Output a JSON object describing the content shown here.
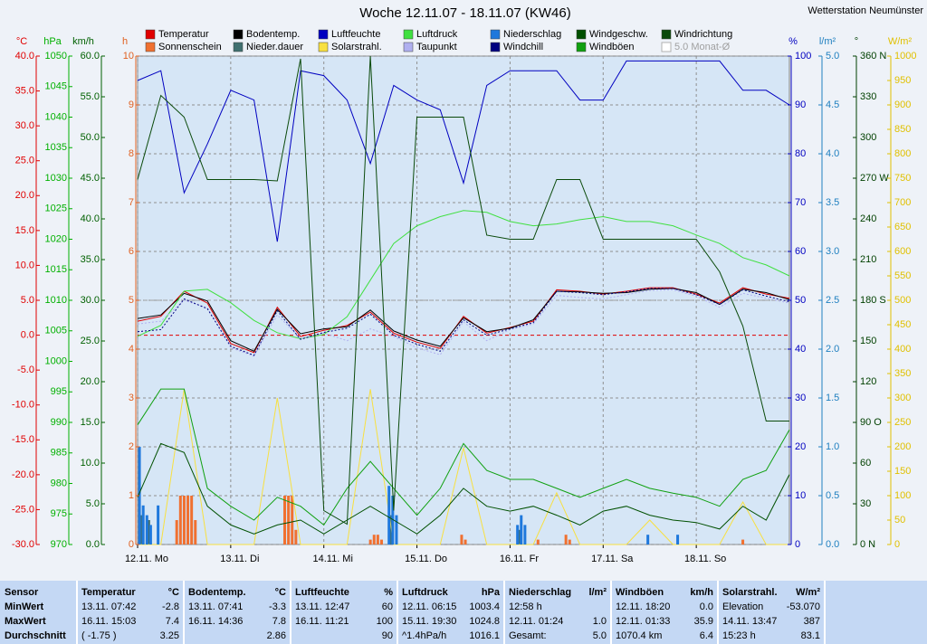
{
  "chart_data": {
    "type": "weather",
    "title": "Woche 12.11.07 - 18.11.07 (KW46)",
    "station": "Wetterstation Neumünster",
    "xlim": [
      0,
      7
    ],
    "xticks": [
      {
        "value": 0,
        "label": "12.11. Mo"
      },
      {
        "value": 1,
        "label": "13.11. Di"
      },
      {
        "value": 2,
        "label": "14.11. Mi"
      },
      {
        "value": 3,
        "label": "15.11. Do"
      },
      {
        "value": 4,
        "label": "16.11. Fr"
      },
      {
        "value": 5,
        "label": "17.11. Sa"
      },
      {
        "value": 6,
        "label": "18.11. So"
      }
    ],
    "axes": [
      {
        "unit": "°C",
        "color": "#e00000",
        "lim": [
          -30,
          40
        ],
        "ticks": [
          {
            "value": 40,
            "label": "40.0"
          },
          {
            "value": 35,
            "label": "35.0"
          },
          {
            "value": 30,
            "label": "30.0"
          },
          {
            "value": 25,
            "label": "25.0"
          },
          {
            "value": 20,
            "label": "20.0"
          },
          {
            "value": 15,
            "label": "15.0"
          },
          {
            "value": 10,
            "label": "10.0"
          },
          {
            "value": 5,
            "label": "5.0"
          },
          {
            "value": 0,
            "label": "0.0"
          },
          {
            "value": -5,
            "label": "-5.0"
          },
          {
            "value": -10,
            "label": "-10.0"
          },
          {
            "value": -15,
            "label": "-15.0"
          },
          {
            "value": -20,
            "label": "-20.0"
          },
          {
            "value": -25,
            "label": "-25.0"
          },
          {
            "value": -30,
            "label": "-30.0"
          }
        ]
      },
      {
        "unit": "hPa",
        "color": "#00b000",
        "lim": [
          970,
          1050
        ],
        "ticks": [
          1050,
          1045,
          1040,
          1035,
          1030,
          1025,
          1020,
          1015,
          1010,
          1005,
          1000,
          995,
          990,
          985,
          980,
          975,
          970
        ]
      },
      {
        "unit": "km/h",
        "color": "#006000",
        "lim": [
          0,
          60
        ],
        "ticks": [
          {
            "value": 60,
            "label": "60.0"
          },
          {
            "value": 55,
            "label": "55.0"
          },
          {
            "value": 50,
            "label": "50.0"
          },
          {
            "value": 45,
            "label": "45.0"
          },
          {
            "value": 40,
            "label": "40.0"
          },
          {
            "value": 35,
            "label": "35.0"
          },
          {
            "value": 30,
            "label": "30.0"
          },
          {
            "value": 25,
            "label": "25.0"
          },
          {
            "value": 20,
            "label": "20.0"
          },
          {
            "value": 15,
            "label": "15.0"
          },
          {
            "value": 10,
            "label": "10.0"
          },
          {
            "value": 5,
            "label": "5.0"
          },
          {
            "value": 0,
            "label": "0.0"
          }
        ]
      },
      {
        "unit": "h",
        "color": "#e06020",
        "lim": [
          0,
          10
        ],
        "grid": true,
        "ticks": [
          10,
          9,
          8,
          7,
          6,
          5,
          4,
          3,
          2,
          1,
          0
        ]
      },
      {
        "unit": "%",
        "color": "#0000c0",
        "lim": [
          0,
          100
        ],
        "ticks": [
          100,
          90,
          80,
          70,
          60,
          50,
          40,
          30,
          20,
          10,
          0
        ]
      },
      {
        "unit": "l/m²",
        "color": "#2080c0",
        "lim": [
          0,
          5
        ],
        "ticks": [
          {
            "value": 5,
            "label": "5.0"
          },
          4.5,
          {
            "value": 4,
            "label": "4.0"
          },
          3.5,
          {
            "value": 3,
            "label": "3.0"
          },
          2.5,
          {
            "value": 2,
            "label": "2.0"
          },
          1.5,
          {
            "value": 1,
            "label": "1.0"
          },
          0.5,
          {
            "value": 0,
            "label": "0.0"
          }
        ]
      },
      {
        "unit": "°",
        "color": "#004000",
        "lim": [
          0,
          360
        ],
        "ticks": [
          {
            "value": 360,
            "label": "360 N"
          },
          330,
          300,
          {
            "value": 270,
            "label": "270 W"
          },
          240,
          210,
          {
            "value": 180,
            "label": "180 S"
          },
          150,
          120,
          {
            "value": 90,
            "label": "90 O"
          },
          60,
          30,
          {
            "value": 0,
            "label": "0 N"
          }
        ]
      },
      {
        "unit": "W/m²",
        "color": "#e0c000",
        "lim": [
          0,
          1000
        ],
        "ticks": [
          1000,
          950,
          900,
          850,
          800,
          750,
          700,
          650,
          600,
          550,
          500,
          450,
          400,
          350,
          300,
          250,
          200,
          150,
          100,
          50,
          0
        ]
      }
    ],
    "x": [
      0,
      0.25,
      0.5,
      0.75,
      1,
      1.25,
      1.5,
      1.75,
      2,
      2.25,
      2.5,
      2.75,
      3,
      3.25,
      3.5,
      3.75,
      4,
      4.25,
      4.5,
      4.75,
      5,
      5.25,
      5.5,
      5.75,
      6,
      6.25,
      6.5,
      6.75,
      7
    ],
    "series": [
      {
        "name": "Temperatur",
        "color": "#e00000",
        "axis": 0,
        "kind": "line",
        "values": [
          2.0,
          2.7,
          6.3,
          4.6,
          -1.2,
          -2.5,
          4.0,
          -0.2,
          0.7,
          1.4,
          3.3,
          0.3,
          -1.0,
          -1.9,
          2.7,
          0.3,
          1.1,
          2.0,
          6.5,
          6.3,
          5.9,
          6.3,
          6.8,
          6.8,
          5.9,
          4.6,
          6.8,
          5.9,
          5.3
        ]
      },
      {
        "name": "Sonnenschein",
        "color": "#f07030",
        "axis": 3,
        "kind": "bar",
        "x": [
          0.42,
          0.46,
          0.5,
          0.54,
          0.58,
          0.62,
          1.58,
          1.62,
          1.66,
          1.7,
          2.5,
          2.54,
          2.58,
          2.62,
          3.48,
          3.52,
          4.3,
          4.6,
          4.64,
          6.5
        ],
        "values": [
          0.5,
          1,
          1,
          1,
          1,
          0.5,
          1,
          1,
          1,
          0.3,
          0.1,
          0.2,
          0.2,
          0.1,
          0.2,
          0.1,
          0.1,
          0.2,
          0.1,
          0.1
        ]
      },
      {
        "name": "Bodentemp.",
        "color": "#000000",
        "axis": 0,
        "kind": "line",
        "values": [
          2.4,
          2.9,
          6.0,
          4.9,
          -0.8,
          -2.3,
          3.7,
          0.2,
          0.9,
          1.2,
          3.6,
          0.6,
          -0.7,
          -1.6,
          2.5,
          0.5,
          1.0,
          2.2,
          6.3,
          6.2,
          6.0,
          6.1,
          6.6,
          6.7,
          6.1,
          4.4,
          6.6,
          6.1,
          5.1
        ]
      },
      {
        "name": "Nieder.dauer",
        "color": "#407070",
        "axis": 3,
        "kind": "bar",
        "x": [
          0.04,
          0.12,
          2.72,
          4.1
        ],
        "values": [
          0.6,
          0.5,
          0.6,
          0.3
        ]
      },
      {
        "name": "Luftfeuchte",
        "color": "#0000c0",
        "axis": 4,
        "kind": "line",
        "values": [
          95,
          97,
          72,
          82,
          93,
          91,
          62,
          97,
          96,
          91,
          78,
          94,
          91,
          89,
          74,
          94,
          97,
          97,
          97,
          91,
          91,
          99,
          99,
          99,
          99,
          99,
          93,
          93,
          90
        ]
      },
      {
        "name": "Solarstrahl.",
        "color": "#f8e040",
        "axis": 7,
        "kind": "line",
        "values": [
          0,
          0,
          318,
          0,
          0,
          0,
          300,
          0,
          0,
          0,
          318,
          0,
          0,
          0,
          198,
          0,
          0,
          0,
          106,
          0,
          0,
          0,
          50,
          0,
          0,
          0,
          87,
          0,
          0
        ]
      },
      {
        "name": "Luftdruck",
        "color": "#40e040",
        "axis": 1,
        "kind": "line",
        "values": [
          1004.1,
          1005.9,
          1011.5,
          1011.8,
          1009.6,
          1006.7,
          1004.7,
          1003.7,
          1004.4,
          1007.3,
          1013.3,
          1019.3,
          1022.2,
          1023.7,
          1024.7,
          1024.4,
          1022.9,
          1022.2,
          1022.5,
          1023.2,
          1023.7,
          1022.9,
          1022.9,
          1022.2,
          1020.7,
          1019.3,
          1017,
          1015.8,
          1014
        ]
      },
      {
        "name": "Taupunkt",
        "color": "#b0b0f0",
        "axis": 0,
        "kind": "line",
        "style": "dotted",
        "values": [
          1.6,
          2.0,
          5.0,
          3.9,
          -1.8,
          -3.0,
          2.9,
          -0.5,
          0.3,
          -0.8,
          0.9,
          -0.2,
          -1.8,
          -2.8,
          1.9,
          -0.8,
          0.8,
          1.6,
          5.7,
          5.4,
          5.2,
          5.8,
          6.4,
          6.5,
          5.6,
          4.0,
          6.0,
          5.3,
          4.6
        ]
      },
      {
        "name": "Niederschlag",
        "color": "#1e78dc",
        "axis": 5,
        "kind": "bar",
        "x": [
          0.02,
          0.06,
          0.1,
          0.14,
          0.22,
          2.7,
          2.74,
          2.78,
          4.08,
          4.12,
          4.16,
          5.48,
          5.8
        ],
        "values": [
          1.0,
          0.4,
          0.3,
          0.2,
          0.4,
          0.6,
          0.5,
          0.3,
          0.2,
          0.3,
          0.2,
          0.1,
          0.1
        ]
      },
      {
        "name": "Windchill",
        "color": "#000080",
        "axis": 0,
        "kind": "line",
        "style": "dotted",
        "values": [
          0.5,
          0.8,
          5.2,
          3.8,
          -1.6,
          -2.9,
          3.5,
          -0.6,
          0.4,
          1.0,
          3.0,
          0.0,
          -1.3,
          -2.3,
          2.2,
          0.0,
          0.9,
          1.8,
          6.3,
          6.1,
          5.8,
          6.2,
          6.7,
          6.7,
          5.8,
          4.4,
          6.5,
          5.6,
          4.8
        ]
      },
      {
        "name": "Windgeschw.",
        "color": "#005000",
        "axis": 2,
        "kind": "line",
        "values": [
          5.8,
          12.4,
          11.3,
          4.7,
          2.4,
          1.3,
          2.4,
          3.0,
          1.3,
          3.0,
          4.7,
          3.0,
          1.3,
          3.6,
          6.9,
          4.7,
          4.1,
          4.7,
          3.6,
          2.4,
          4.1,
          4.7,
          3.6,
          3.0,
          2.7,
          1.9,
          4.7,
          3.0,
          8.6
        ]
      },
      {
        "name": "Windböen",
        "color": "#10a010",
        "axis": 2,
        "kind": "line",
        "values": [
          14.7,
          19.1,
          19.1,
          6.9,
          4.7,
          3.0,
          5.8,
          4.7,
          2.4,
          6.9,
          10.2,
          6.9,
          3.6,
          6.9,
          12.4,
          9.1,
          8.0,
          8.0,
          6.9,
          5.8,
          6.9,
          8.0,
          6.9,
          6.3,
          5.8,
          4.7,
          8.0,
          9.1,
          14.1
        ]
      },
      {
        "name": "Windrichtung",
        "color": "#0a4a0a",
        "axis": 6,
        "kind": "line",
        "values": [
          269,
          331,
          315,
          269,
          269,
          269,
          268,
          358,
          25,
          15,
          360,
          25,
          315,
          315,
          315,
          228,
          225,
          225,
          269,
          269,
          225,
          225,
          225,
          225,
          225,
          201,
          161,
          91,
          91
        ]
      }
    ],
    "reference_lines": [
      {
        "name": "5.0 Monat-Ø",
        "value": 5,
        "axis": 0,
        "color": "#a0a0a0"
      },
      {
        "value": 0,
        "axis": 0,
        "color": "#e00000"
      }
    ]
  },
  "table": {
    "row_labels": [
      "Sensor",
      "MinWert",
      "MaxWert",
      "Durchschnitt"
    ],
    "columns": [
      {
        "header": "Temperatur",
        "unit": "°C",
        "rows": [
          {
            "time": "13.11. 07:42",
            "value": "-2.8"
          },
          {
            "time": "16.11. 15:03",
            "value": "7.4"
          },
          {
            "time": "( -1.75 )",
            "value": "3.25"
          }
        ]
      },
      {
        "header": "Bodentemp.",
        "unit": "°C",
        "rows": [
          {
            "time": "13.11. 07:41",
            "value": "-3.3"
          },
          {
            "time": "16.11. 14:36",
            "value": "7.8"
          },
          {
            "value": "2.86"
          }
        ]
      },
      {
        "header": "Luftfeuchte",
        "unit": "%",
        "rows": [
          {
            "time": "13.11. 12:47",
            "value": "60"
          },
          {
            "time": "16.11. 11:21",
            "value": "100"
          },
          {
            "value": "90"
          }
        ]
      },
      {
        "header": "Luftdruck",
        "unit": "hPa",
        "rows": [
          {
            "time": "12.11. 06:15",
            "value": "1003.4"
          },
          {
            "time": "15.11. 19:30",
            "value": "1024.8"
          },
          {
            "time": "^1.4hPa/h",
            "value": "1016.1"
          }
        ]
      },
      {
        "header": "Niederschlag",
        "unit": "l/m²",
        "rows": [
          {
            "time": "12:58 h"
          },
          {
            "time": "12.11. 01:24",
            "value": "1.0"
          },
          {
            "time": "Gesamt:",
            "value": "5.0"
          }
        ]
      },
      {
        "header": "Windböen",
        "unit": "km/h",
        "rows": [
          {
            "time": "12.11. 18:20",
            "value": "0.0"
          },
          {
            "time": "12.11. 01:33",
            "value": "35.9"
          },
          {
            "time": "1070.4 km",
            "value": "6.4"
          }
        ]
      },
      {
        "header": "Solarstrahl.",
        "unit": "W/m²",
        "rows": [
          {
            "time": "Elevation",
            "value": "-53.070"
          },
          {
            "time": "14.11. 13:47",
            "value": "387"
          },
          {
            "time": "15:23 h",
            "value": "83.1"
          }
        ]
      }
    ]
  }
}
